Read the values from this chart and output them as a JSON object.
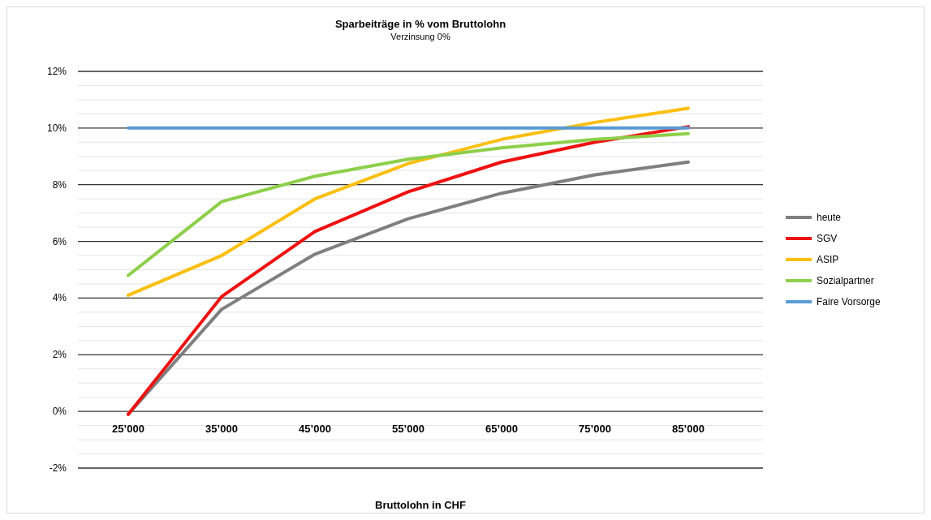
{
  "chart_data": {
    "type": "line",
    "title": "Sparbeiträge in % vom Bruttolohn",
    "subtitle": "Verzinsung 0%",
    "xlabel": "Bruttolohn in CHF",
    "categories": [
      "25’000",
      "35’000",
      "45’000",
      "55’000",
      "65’000",
      "75’000",
      "85’000"
    ],
    "series": [
      {
        "name": "heute",
        "color": "#7f7f7f",
        "values": [
          -0.1,
          3.6,
          5.55,
          6.8,
          7.7,
          8.35,
          8.8
        ]
      },
      {
        "name": "SGV",
        "color": "#ee1111",
        "values": [
          -0.1,
          4.05,
          6.35,
          7.75,
          8.8,
          9.5,
          10.05
        ]
      },
      {
        "name": "ASIP",
        "color": "#fbbf10",
        "values": [
          4.1,
          5.5,
          7.5,
          8.75,
          9.6,
          10.2,
          10.7
        ]
      },
      {
        "name": "Sozialpartner",
        "color": "#8dcf4a",
        "values": [
          4.8,
          7.4,
          8.3,
          8.9,
          9.3,
          9.6,
          9.8
        ]
      },
      {
        "name": "Faire Vorsorge",
        "color": "#5b9bd5",
        "values": [
          10,
          10,
          10,
          10,
          10,
          10,
          10
        ]
      }
    ],
    "ylim": [
      -2,
      12
    ],
    "yticks": [
      {
        "value": -2,
        "label": "-2%"
      },
      {
        "value": -1.5,
        "label": null
      },
      {
        "value": -1,
        "label": null
      },
      {
        "value": -0.5,
        "label": null
      },
      {
        "value": 0,
        "label": "0%"
      },
      {
        "value": 0.5,
        "label": null
      },
      {
        "value": 1,
        "label": null
      },
      {
        "value": 1.5,
        "label": null
      },
      {
        "value": 2,
        "label": "2%"
      },
      {
        "value": 2.5,
        "label": null
      },
      {
        "value": 3,
        "label": null
      },
      {
        "value": 3.5,
        "label": null
      },
      {
        "value": 4,
        "label": "4%"
      },
      {
        "value": 4.5,
        "label": null
      },
      {
        "value": 5,
        "label": null
      },
      {
        "value": 5.5,
        "label": null
      },
      {
        "value": 6,
        "label": "6%"
      },
      {
        "value": 6.5,
        "label": null
      },
      {
        "value": 7,
        "label": null
      },
      {
        "value": 7.5,
        "label": null
      },
      {
        "value": 8,
        "label": "8%"
      },
      {
        "value": 8.5,
        "label": null
      },
      {
        "value": 9,
        "label": null
      },
      {
        "value": 9.5,
        "label": null
      },
      {
        "value": 10,
        "label": "10%"
      },
      {
        "value": 10.5,
        "label": null
      },
      {
        "value": 11,
        "label": null
      },
      {
        "value": 11.5,
        "label": null
      },
      {
        "value": 12,
        "label": "12%"
      }
    ],
    "grid": "y",
    "legend": "right",
    "marker": "none",
    "line_style": "solid"
  }
}
